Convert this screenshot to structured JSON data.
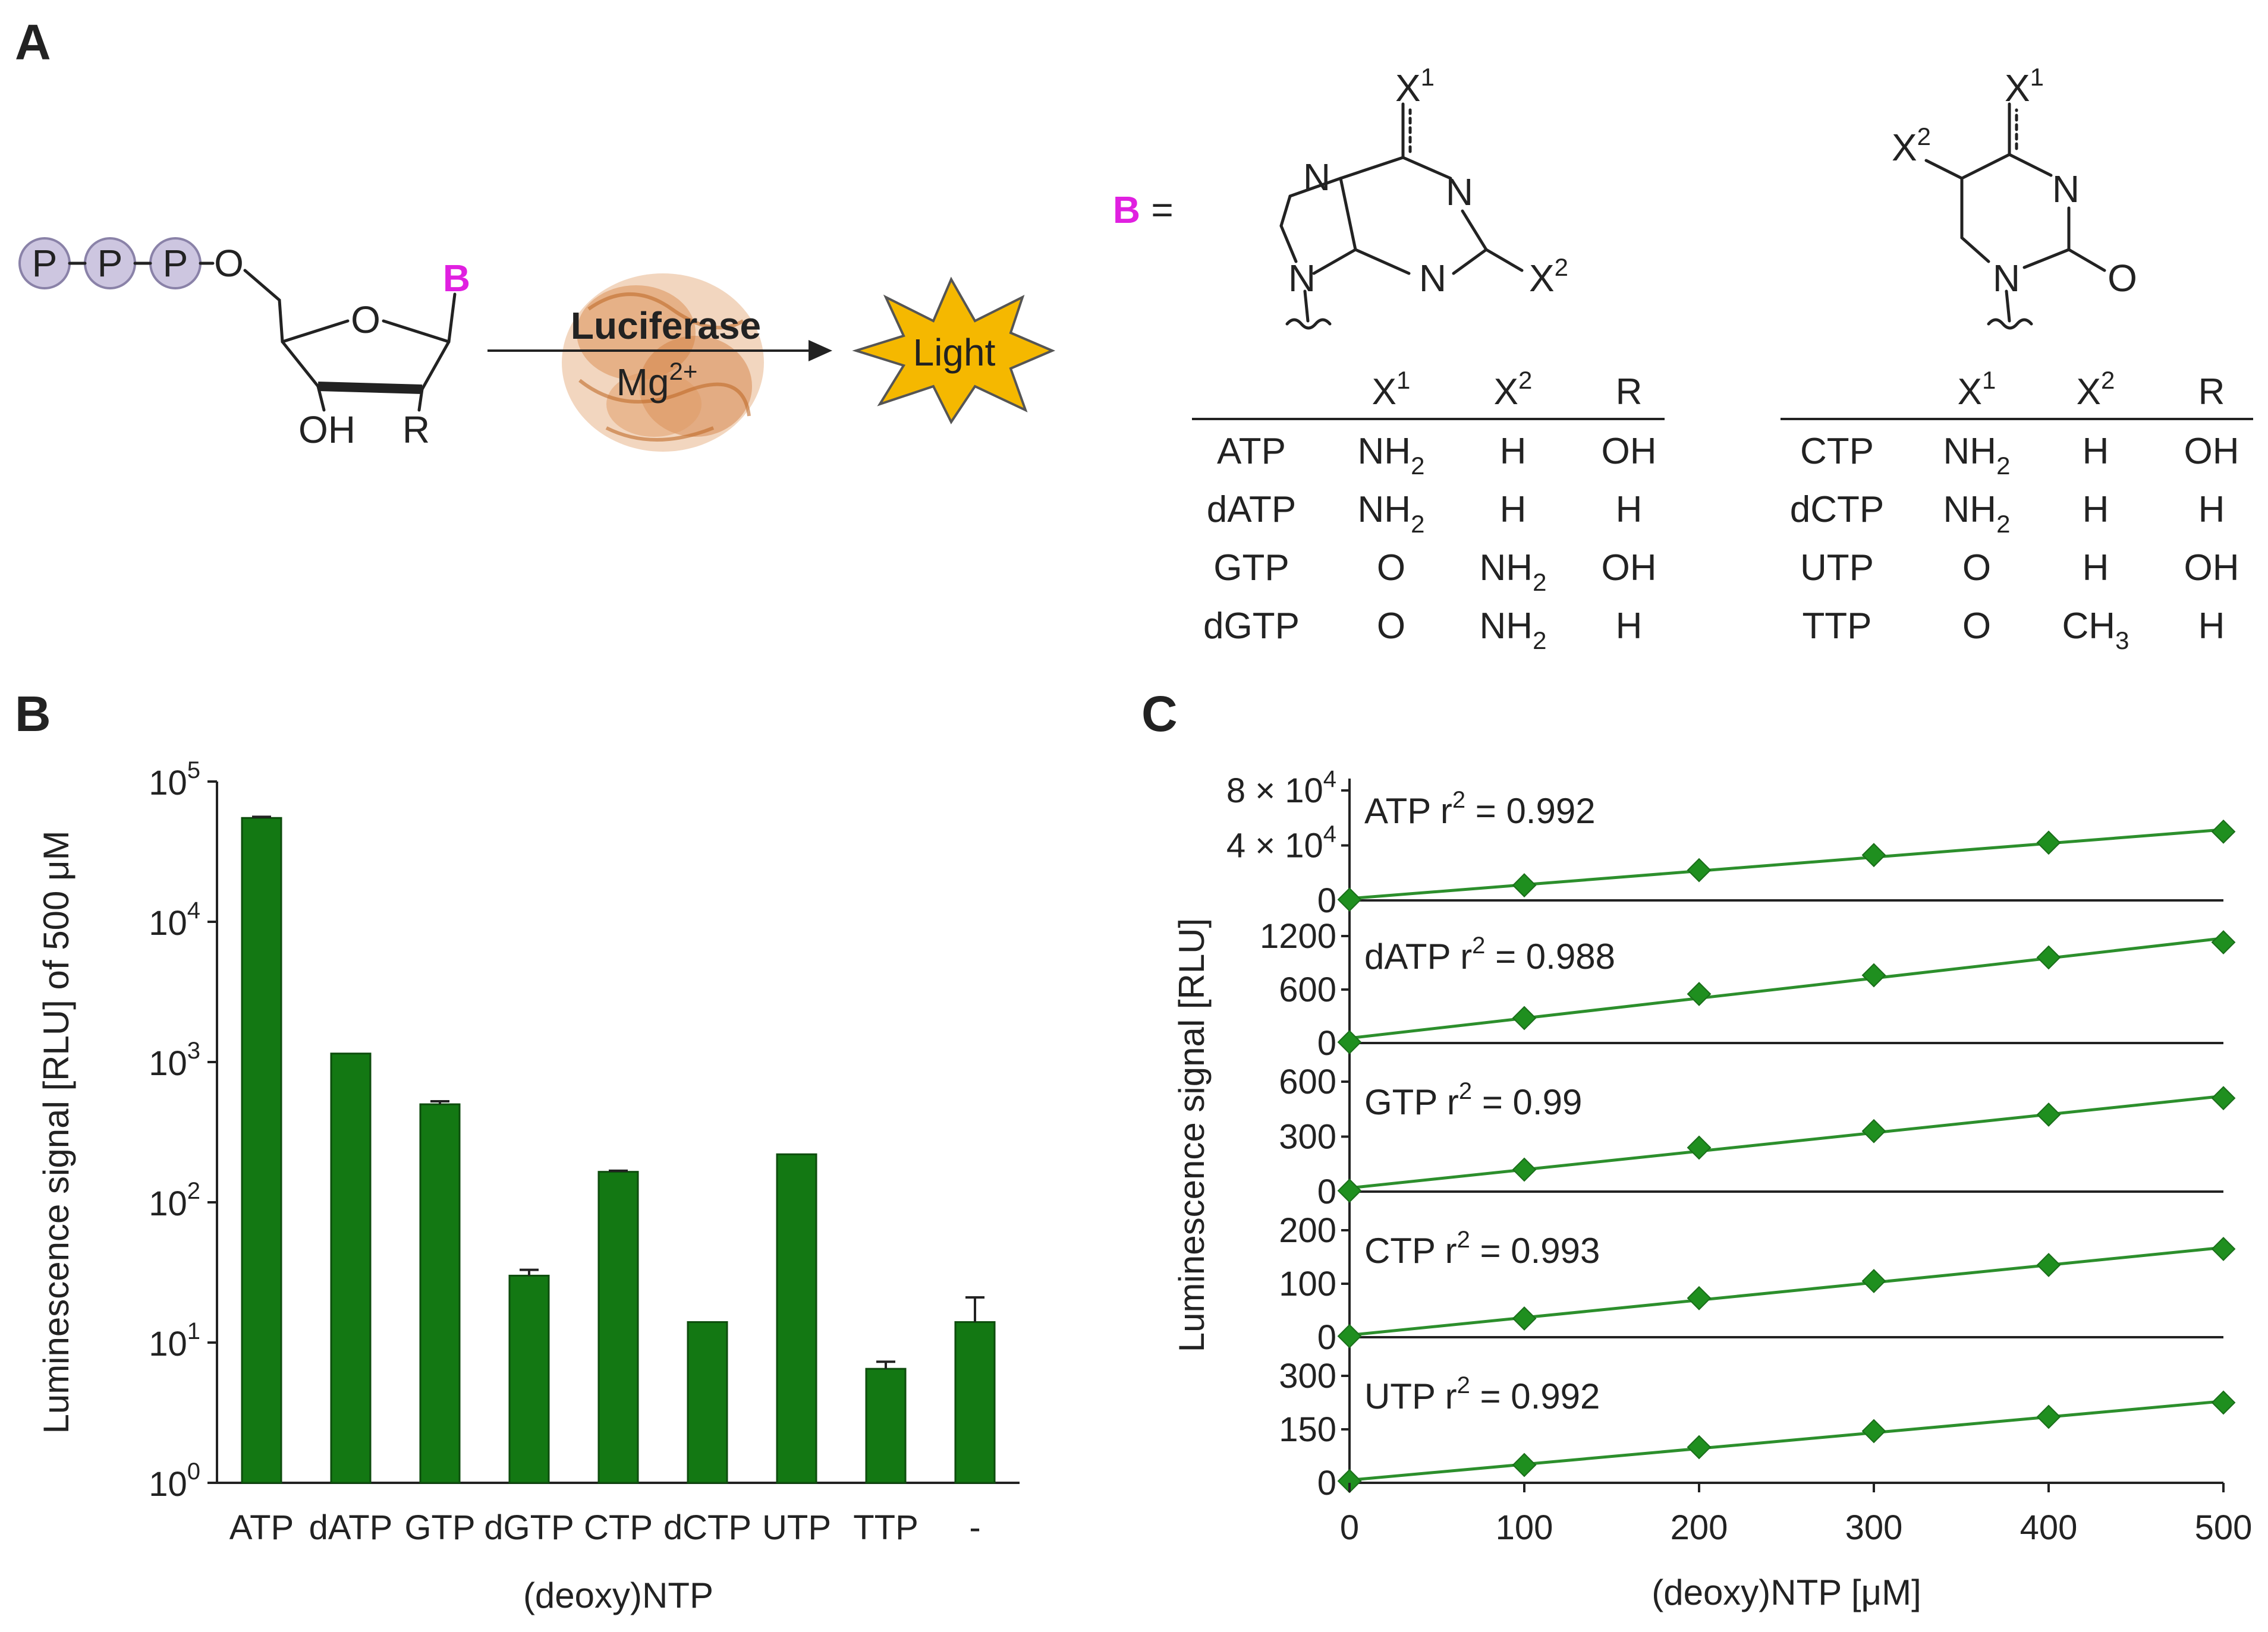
{
  "panel_a": {
    "letter": "A",
    "phosphate": "P",
    "oxygen": "O",
    "base_label": "B",
    "oh_label": "OH",
    "r_label": "R",
    "enzyme": "Luciferase",
    "cofactor": "Mg",
    "cofactor_charge": "2+",
    "product": "Light",
    "b_equals": "=",
    "atom_n": "N",
    "atom_o": "O",
    "x1": "X",
    "x1_sup": "1",
    "x2": "X",
    "x2_sup": "2",
    "purine_table": {
      "headers": [
        "",
        "X1",
        "X2",
        "R"
      ],
      "rows": [
        [
          "ATP",
          "NH2",
          "H",
          "OH"
        ],
        [
          "dATP",
          "NH2",
          "H",
          "H"
        ],
        [
          "GTP",
          "O",
          "NH2",
          "OH"
        ],
        [
          "dGTP",
          "O",
          "NH2",
          "H"
        ]
      ]
    },
    "pyrimidine_table": {
      "headers": [
        "",
        "X1",
        "X2",
        "R"
      ],
      "rows": [
        [
          "CTP",
          "NH2",
          "H",
          "OH"
        ],
        [
          "dCTP",
          "NH2",
          "H",
          "H"
        ],
        [
          "UTP",
          "O",
          "H",
          "OH"
        ],
        [
          "TTP",
          "O",
          "CH3",
          "H"
        ]
      ]
    }
  },
  "chart_data": [
    {
      "panel": "B",
      "type": "bar",
      "scale": "log",
      "xlabel": "(deoxy)NTP",
      "ylabel": "Luminescence signal [RLU] of 500 μM",
      "categories": [
        "ATP",
        "dATP",
        "GTP",
        "dGTP",
        "CTP",
        "dCTP",
        "UTP",
        "TTP",
        "-"
      ],
      "values": [
        55000,
        1150,
        500,
        30,
        165,
        14,
        220,
        6.5,
        14
      ],
      "errors": [
        1000,
        0,
        25,
        3,
        3,
        0,
        0,
        0.8,
        7
      ],
      "ylim": [
        1,
        100000
      ],
      "yticks": [
        {
          "base": "10",
          "exp": "0"
        },
        {
          "base": "10",
          "exp": "1"
        },
        {
          "base": "10",
          "exp": "2"
        },
        {
          "base": "10",
          "exp": "3"
        },
        {
          "base": "10",
          "exp": "4"
        },
        {
          "base": "10",
          "exp": "5"
        }
      ],
      "bar_color": "#137813"
    },
    {
      "panel": "C",
      "type": "scatter",
      "xlabel": "(deoxy)NTP [μM]",
      "ylabel": "Luminescence signal [RLU]",
      "x": [
        0,
        100,
        200,
        300,
        400,
        500
      ],
      "xticks": [
        "0",
        "100",
        "200",
        "300",
        "400",
        "500"
      ],
      "xlim": [
        0,
        500
      ],
      "line_color": "#2c8f2c",
      "series": [
        {
          "name": "ATP",
          "r2_label": "r",
          "r2_sup": "2",
          "r2_value": " = 0.992",
          "y": [
            600,
            11000,
            22000,
            33000,
            42000,
            50000
          ],
          "ylim": [
            0,
            80000
          ],
          "yticks": [
            0,
            40000,
            80000
          ],
          "ytick_labels": [
            "0",
            "4 × 10",
            "8 × 10"
          ],
          "ytick_sup": [
            "",
            "4",
            "4"
          ]
        },
        {
          "name": "dATP",
          "r2_label": "r",
          "r2_sup": "2",
          "r2_value": " = 0.988",
          "y": [
            10,
            280,
            550,
            760,
            960,
            1130
          ],
          "ylim": [
            0,
            1200
          ],
          "yticks": [
            0,
            600,
            1200
          ],
          "ytick_labels": [
            "0",
            "600",
            "1200"
          ],
          "ytick_sup": [
            "",
            "",
            ""
          ]
        },
        {
          "name": "GTP",
          "r2_label": "r",
          "r2_sup": "2",
          "r2_value": " = 0.99",
          "y": [
            5,
            120,
            240,
            330,
            420,
            510
          ],
          "ylim": [
            0,
            600
          ],
          "yticks": [
            0,
            300,
            600
          ],
          "ytick_labels": [
            "0",
            "300",
            "600"
          ],
          "ytick_sup": [
            "",
            "",
            ""
          ]
        },
        {
          "name": "CTP",
          "r2_label": "r",
          "r2_sup": "2",
          "r2_value": " = 0.993",
          "y": [
            2,
            35,
            73,
            105,
            135,
            165
          ],
          "ylim": [
            0,
            200
          ],
          "yticks": [
            0,
            100,
            200
          ],
          "ytick_labels": [
            "0",
            "100",
            "200"
          ],
          "ytick_sup": [
            "",
            "",
            ""
          ]
        },
        {
          "name": "UTP",
          "r2_label": "r",
          "r2_sup": "2",
          "r2_value": " = 0.992",
          "y": [
            5,
            50,
            100,
            145,
            185,
            225
          ],
          "ylim": [
            0,
            300
          ],
          "yticks": [
            0,
            150,
            300
          ],
          "ytick_labels": [
            "0",
            "150",
            "300"
          ],
          "ytick_sup": [
            "",
            "",
            ""
          ]
        }
      ]
    }
  ]
}
